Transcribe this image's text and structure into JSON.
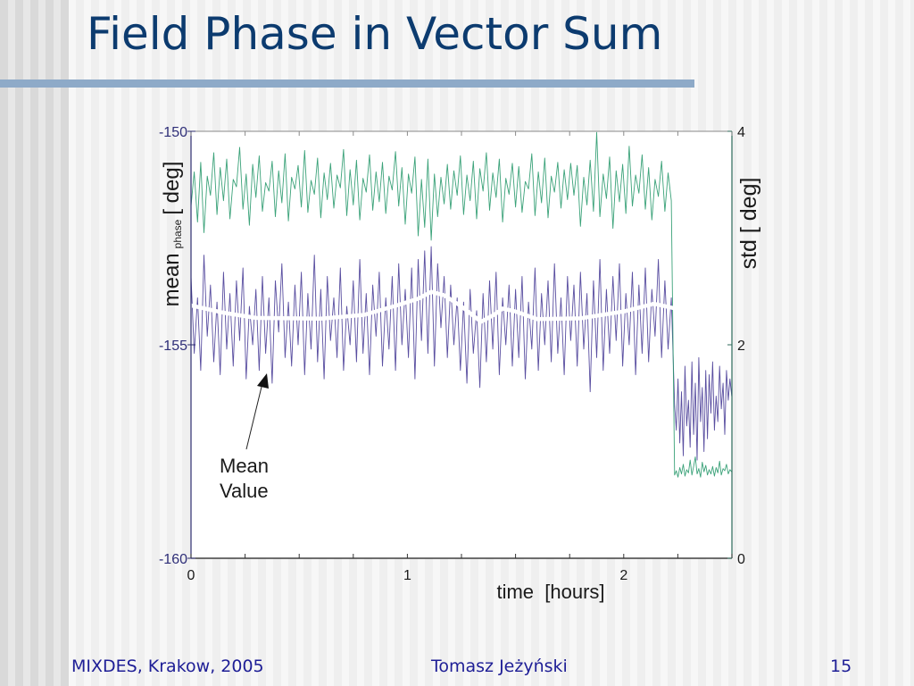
{
  "slide": {
    "title": "Field Phase in Vector Sum",
    "footer": {
      "left": "MIXDES, Krakow, 2005",
      "center": "Tomasz Jeżyński",
      "page_number": "15"
    }
  },
  "colors": {
    "title": "#0c3b6f",
    "title_bar": "#8eaac8",
    "footer": "#1e1e96",
    "mean_phase": "#4b3f98",
    "std": "#2a9a6e",
    "mean_value": "#ffffff"
  },
  "chart_data": {
    "type": "line",
    "title": "",
    "xlabel": "time  [hours]",
    "ylabel_left": {
      "main": "mean",
      "subscript": "phase",
      "unit": "[ deg]"
    },
    "ylabel_right": "std [ deg]",
    "xlim": [
      0,
      2.5
    ],
    "ylim_left": [
      -160,
      -150
    ],
    "ylim_right": [
      0,
      4
    ],
    "grid": false,
    "legend": "none",
    "x_ticks": [
      0,
      0.25,
      0.5,
      0.75,
      1,
      1.25,
      1.5,
      1.75,
      2,
      2.25,
      2.5
    ],
    "x_tick_labels": [
      {
        "value": 0,
        "label": "0"
      },
      {
        "value": 1,
        "label": "1"
      },
      {
        "value": 2,
        "label": "2"
      }
    ],
    "y_left_ticks": [
      -150,
      -155,
      -160
    ],
    "y_left_tick_labels": [
      {
        "value": -150,
        "label": "-150"
      },
      {
        "value": -155,
        "label": "-155"
      },
      {
        "value": -160,
        "label": "-160"
      }
    ],
    "y_right_ticks": [
      4,
      2,
      0
    ],
    "y_right_tick_labels": [
      {
        "value": 4,
        "label": "4"
      },
      {
        "value": 2,
        "label": "2"
      },
      {
        "value": 0,
        "label": "0"
      }
    ],
    "series": [
      {
        "id": "mean-phase",
        "name": "mean phase",
        "axis": "left",
        "role": "raw",
        "color": "#4b3f98",
        "segments": [
          {
            "x_start": 0,
            "x_step": 0.015,
            "values": [
              -153.4,
              -155.2,
              -153.9,
              -155.6,
              -152.9,
              -154.8,
              -153.6,
              -155.4,
              -154.0,
              -155.7,
              -153.3,
              -155.1,
              -153.8,
              -155.5,
              -153.5,
              -154.9,
              -153.2,
              -155.8,
              -154.1,
              -155.0,
              -153.7,
              -155.6,
              -153.4,
              -155.2,
              -153.9,
              -155.9,
              -153.5,
              -154.7,
              -153.1,
              -155.3,
              -154.0,
              -155.5,
              -153.6,
              -155.0,
              -153.3,
              -155.7,
              -153.8,
              -155.1,
              -152.9,
              -155.4,
              -153.7,
              -155.8,
              -153.4,
              -154.9,
              -153.9,
              -155.3,
              -153.2,
              -155.6,
              -154.1,
              -155.0,
              -153.5,
              -155.4,
              -153.0,
              -155.2,
              -153.8,
              -155.7,
              -153.6,
              -154.8,
              -153.3,
              -155.5,
              -153.9,
              -155.1,
              -153.4,
              -155.6,
              -153.1,
              -155.0,
              -153.7,
              -155.3,
              -153.2,
              -155.8,
              -153.0,
              -154.9,
              -152.8,
              -155.2,
              -152.7,
              -155.5,
              -153.1,
              -154.6,
              -153.4,
              -155.3,
              -153.6,
              -155.0,
              -153.9,
              -155.6,
              -154.0,
              -155.9,
              -153.7,
              -155.2,
              -154.2,
              -156.0,
              -153.8,
              -155.4,
              -153.5,
              -155.1,
              -153.3,
              -155.7,
              -153.9,
              -155.0,
              -153.6,
              -155.5,
              -153.7,
              -155.3,
              -153.4,
              -155.8,
              -154.0,
              -155.1,
              -153.2,
              -155.6,
              -153.8,
              -155.0,
              -153.5,
              -155.4,
              -153.1,
              -155.2,
              -153.9,
              -155.7,
              -153.4,
              -154.9,
              -153.6,
              -155.5,
              -153.3,
              -155.1,
              -153.8,
              -156.1,
              -153.5,
              -155.3,
              -153.0,
              -155.6,
              -153.7,
              -155.2,
              -153.4,
              -154.9,
              -153.1,
              -155.5,
              -153.8,
              -155.0,
              -153.3,
              -155.7,
              -153.6,
              -155.2,
              -153.2,
              -155.4,
              -153.7,
              -154.8,
              -153.0,
              -155.3,
              -153.5,
              -155.1,
              -153.9
            ]
          },
          {
            "x_start": 2.235,
            "x_step": 0.008,
            "values": [
              -156.4,
              -157.0,
              -155.8,
              -157.3,
              -156.1,
              -157.6,
              -155.5,
              -156.9,
              -156.3,
              -157.4,
              -155.4,
              -157.1,
              -155.9,
              -157.7,
              -155.3,
              -156.8,
              -156.0,
              -157.5,
              -155.6,
              -157.2,
              -155.7,
              -156.6,
              -155.4,
              -157.0,
              -156.2,
              -156.8,
              -155.5,
              -156.5,
              -155.9,
              -157.1,
              -155.6,
              -156.3,
              -155.8,
              -156.2
            ]
          }
        ]
      },
      {
        "id": "std",
        "name": "std",
        "axis": "right",
        "role": "raw",
        "color": "#2a9a6e",
        "segments": [
          {
            "x_start": 0,
            "x_step": 0.015,
            "values": [
              3.3,
              3.62,
              3.15,
              3.71,
              3.05,
              3.58,
              3.4,
              3.8,
              3.22,
              3.66,
              3.35,
              3.74,
              3.18,
              3.55,
              3.48,
              3.85,
              3.27,
              3.6,
              3.12,
              3.69,
              3.38,
              3.77,
              3.25,
              3.52,
              3.44,
              3.72,
              3.2,
              3.63,
              3.33,
              3.79,
              3.16,
              3.57,
              3.46,
              3.68,
              3.29,
              3.82,
              3.24,
              3.54,
              3.41,
              3.75,
              3.19,
              3.61,
              3.36,
              3.7,
              3.28,
              3.59,
              3.47,
              3.83,
              3.21,
              3.64,
              3.31,
              3.73,
              3.17,
              3.56,
              3.43,
              3.78,
              3.26,
              3.62,
              3.34,
              3.71,
              3.23,
              3.58,
              3.45,
              3.81,
              3.3,
              3.66,
              3.13,
              3.6,
              3.42,
              3.76,
              3.02,
              3.55,
              3.1,
              3.74,
              2.98,
              3.6,
              3.2,
              3.57,
              3.32,
              3.69,
              3.27,
              3.63,
              3.4,
              3.77,
              3.22,
              3.59,
              3.35,
              3.72,
              3.18,
              3.65,
              3.44,
              3.8,
              3.26,
              3.61,
              3.38,
              3.74,
              3.15,
              3.56,
              3.41,
              3.7,
              3.29,
              3.67,
              3.24,
              3.53,
              3.46,
              3.79,
              3.21,
              3.62,
              3.33,
              3.75,
              3.19,
              3.58,
              3.43,
              3.71,
              3.28,
              3.64,
              3.36,
              3.7,
              3.4,
              3.68,
              3.11,
              3.57,
              3.31,
              3.73,
              3.25,
              3.99,
              3.2,
              3.6,
              3.37,
              3.76,
              3.09,
              3.63,
              3.34,
              3.69,
              3.23,
              3.86,
              3.3,
              3.59,
              3.42,
              3.78,
              3.27,
              3.66,
              3.17,
              3.55,
              3.39,
              3.72,
              3.25,
              3.61,
              3.35
            ]
          },
          {
            "x_start": 2.235,
            "x_step": 0.008,
            "values": [
              0.78,
              0.82,
              0.76,
              0.85,
              0.79,
              0.88,
              0.77,
              0.83,
              0.8,
              0.92,
              0.78,
              0.86,
              0.95,
              0.79,
              0.84,
              0.76,
              0.9,
              0.81,
              0.87,
              0.78,
              0.83,
              0.79,
              0.86,
              0.77,
              0.85,
              0.8,
              0.91,
              0.78,
              0.84,
              0.82,
              0.88,
              0.79,
              0.83,
              0.81
            ]
          }
        ]
      },
      {
        "id": "mean-value",
        "name": "Mean Value",
        "axis": "left",
        "role": "smoothed",
        "color": "#ffffff",
        "points": [
          [
            0,
            -154.08
          ],
          [
            0.15,
            -154.25
          ],
          [
            0.3,
            -154.37
          ],
          [
            0.6,
            -154.39
          ],
          [
            0.8,
            -154.3
          ],
          [
            0.95,
            -154.08
          ],
          [
            1.05,
            -153.92
          ],
          [
            1.11,
            -153.76
          ],
          [
            1.17,
            -153.84
          ],
          [
            1.25,
            -154.1
          ],
          [
            1.34,
            -154.46
          ],
          [
            1.4,
            -154.3
          ],
          [
            1.44,
            -154.15
          ],
          [
            1.5,
            -154.22
          ],
          [
            1.6,
            -154.4
          ],
          [
            1.8,
            -154.38
          ],
          [
            2.0,
            -154.22
          ],
          [
            2.14,
            -154.04
          ],
          [
            2.23,
            -154.14
          ]
        ]
      }
    ],
    "annotations": [
      {
        "text_lines": [
          "Mean",
          "Value"
        ],
        "target_series": "mean-value"
      }
    ]
  }
}
